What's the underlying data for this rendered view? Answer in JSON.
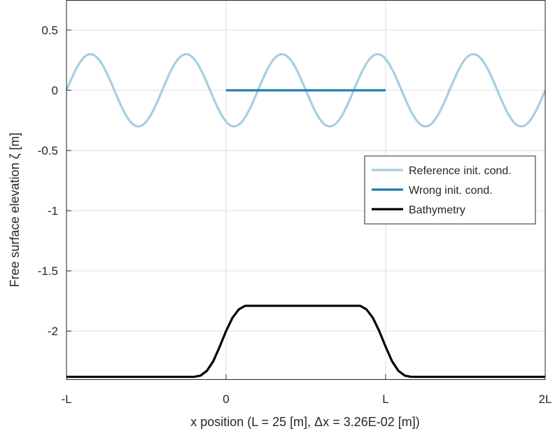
{
  "chart_data": {
    "type": "line",
    "xlabel": "x position (L = 25 [m], Δx = 3.26E-02 [m])",
    "ylabel": "Free surface elevation ζ [m]",
    "xlim": [
      -25,
      50
    ],
    "ylim": [
      -2.4,
      0.75
    ],
    "x_ticks": [
      {
        "value": -25,
        "label": "-L"
      },
      {
        "value": 0,
        "label": "0"
      },
      {
        "value": 25,
        "label": "L"
      },
      {
        "value": 50,
        "label": "2L"
      }
    ],
    "y_ticks": [
      {
        "value": 0.5,
        "label": "0.5"
      },
      {
        "value": 0,
        "label": "0"
      },
      {
        "value": -0.5,
        "label": "-0.5"
      },
      {
        "value": -1,
        "label": "-1"
      },
      {
        "value": -1.5,
        "label": "-1.5"
      },
      {
        "value": -2,
        "label": "-2"
      }
    ],
    "grid": true,
    "legend_position": "right, middle",
    "series": [
      {
        "name": "Reference init. cond.",
        "color": "#a6cee3",
        "shape": "sinusoid",
        "amplitude": 0.3,
        "wavelength": 15,
        "x_start": -25,
        "x_end": 50,
        "value_at_x_start": 0
      },
      {
        "name": "Wrong init. cond.",
        "color": "#1f78b4",
        "x": [
          0,
          25
        ],
        "y": [
          0,
          0
        ]
      },
      {
        "name": "Bathymetry",
        "color": "#000000",
        "x": [
          -25,
          -5,
          -4,
          -3,
          -2,
          -1,
          0,
          1,
          2,
          3,
          4,
          20,
          21,
          22,
          23,
          24,
          25,
          26,
          27,
          28,
          29,
          30,
          50
        ],
        "y": [
          -2.38,
          -2.38,
          -2.37,
          -2.33,
          -2.25,
          -2.13,
          -2.0,
          -1.89,
          -1.82,
          -1.79,
          -1.79,
          -1.79,
          -1.79,
          -1.82,
          -1.89,
          -2.0,
          -2.13,
          -2.25,
          -2.33,
          -2.37,
          -2.38,
          -2.38,
          -2.38
        ]
      }
    ]
  }
}
